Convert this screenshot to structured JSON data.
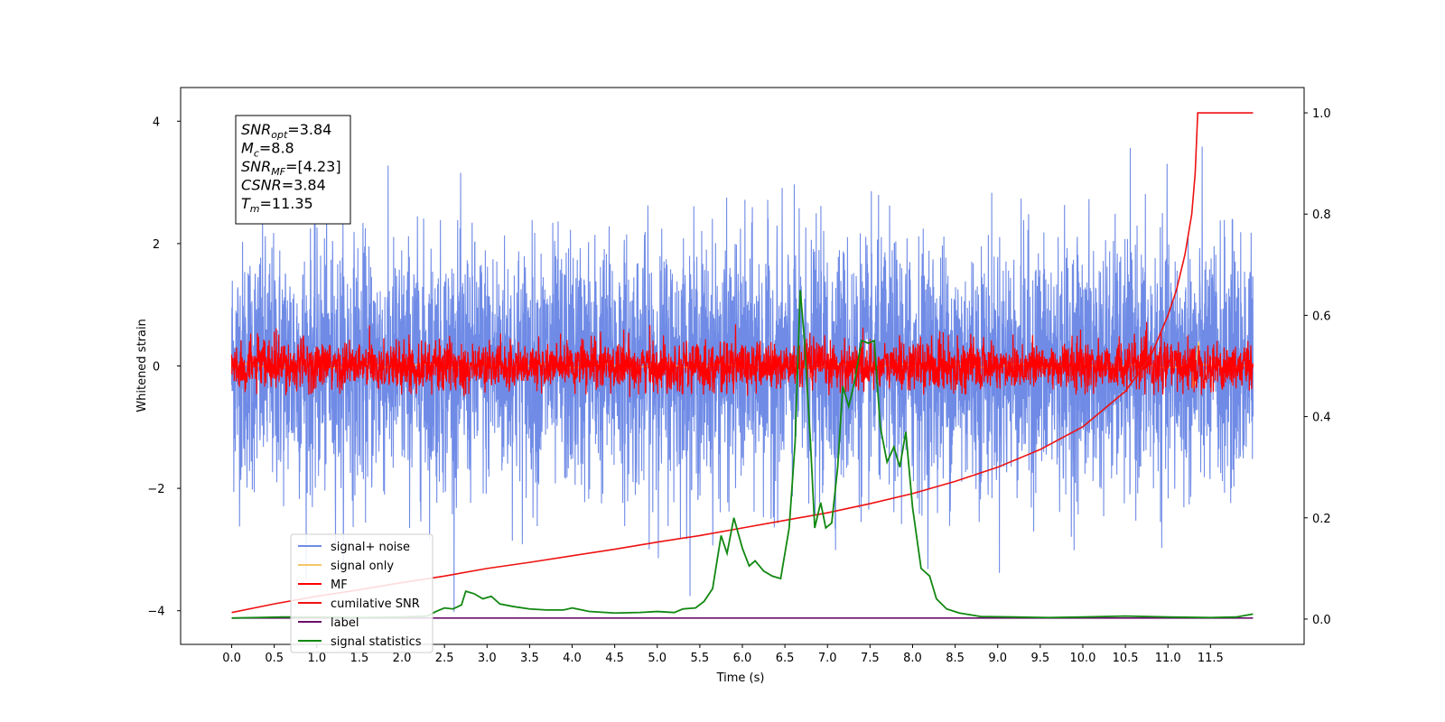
{
  "chart_data": {
    "type": "line",
    "xlabel": "Time (s)",
    "ylabel": "Whitened strain",
    "xlim": [
      -0.6,
      12.6
    ],
    "ylim": [
      -4.55,
      4.55
    ],
    "y2lim": [
      -0.05,
      1.05
    ],
    "x_ticks": [
      "0.0",
      "0.5",
      "1.0",
      "1.5",
      "2.0",
      "2.5",
      "3.0",
      "3.5",
      "4.0",
      "4.5",
      "5.0",
      "5.5",
      "6.0",
      "6.5",
      "7.0",
      "7.5",
      "8.0",
      "8.5",
      "9.0",
      "9.5",
      "10.0",
      "10.5",
      "11.0",
      "11.5"
    ],
    "y_ticks": [
      "−4",
      "−2",
      "0",
      "2",
      "4"
    ],
    "y2_ticks": [
      "0.0",
      "0.2",
      "0.4",
      "0.6",
      "0.8",
      "1.0"
    ],
    "legend_placement": "lower-left",
    "grid": false,
    "colors": {
      "signal_noise": "#6f8be6",
      "signal_only": "#f5c66a",
      "mf": "#ff0000",
      "cumulative": "#ee1111",
      "label": "#6a0f6a",
      "statistics": "#118811"
    },
    "series": [
      {
        "key": "signal_noise",
        "name": "signal+ noise",
        "axis": "left",
        "note_amplitude": 1.0,
        "t_range": [
          0.0,
          12.0
        ]
      },
      {
        "key": "signal_only",
        "name": "signal only",
        "axis": "left",
        "t_range": [
          0.0,
          12.0
        ]
      },
      {
        "key": "mf",
        "name": "MF",
        "axis": "left",
        "t_range": [
          0.0,
          12.0
        ]
      },
      {
        "key": "cumulative",
        "name": "cumilative SNR",
        "axis": "right",
        "points": [
          [
            0.0,
            0.013
          ],
          [
            0.5,
            0.03
          ],
          [
            1.0,
            0.045
          ],
          [
            1.5,
            0.058
          ],
          [
            2.0,
            0.072
          ],
          [
            2.5,
            0.085
          ],
          [
            3.0,
            0.1
          ],
          [
            3.5,
            0.112
          ],
          [
            4.0,
            0.125
          ],
          [
            4.5,
            0.138
          ],
          [
            5.0,
            0.152
          ],
          [
            5.5,
            0.165
          ],
          [
            6.0,
            0.18
          ],
          [
            6.5,
            0.195
          ],
          [
            7.0,
            0.21
          ],
          [
            7.5,
            0.228
          ],
          [
            8.0,
            0.248
          ],
          [
            8.5,
            0.272
          ],
          [
            9.0,
            0.3
          ],
          [
            9.5,
            0.335
          ],
          [
            10.0,
            0.38
          ],
          [
            10.5,
            0.45
          ],
          [
            10.8,
            0.52
          ],
          [
            11.0,
            0.6
          ],
          [
            11.1,
            0.65
          ],
          [
            11.2,
            0.72
          ],
          [
            11.28,
            0.8
          ],
          [
            11.32,
            0.88
          ],
          [
            11.35,
            1.0
          ],
          [
            12.0,
            1.0
          ]
        ]
      },
      {
        "key": "label",
        "name": "label",
        "axis": "right",
        "points": [
          [
            0.0,
            0.002
          ],
          [
            12.0,
            0.002
          ]
        ]
      },
      {
        "key": "statistics",
        "name": "signal statistics",
        "axis": "right",
        "points": [
          [
            0.0,
            0.002
          ],
          [
            0.3,
            0.003
          ],
          [
            0.6,
            0.004
          ],
          [
            1.0,
            0.004
          ],
          [
            1.5,
            0.003
          ],
          [
            2.0,
            0.004
          ],
          [
            2.3,
            0.006
          ],
          [
            2.4,
            0.015
          ],
          [
            2.5,
            0.022
          ],
          [
            2.6,
            0.02
          ],
          [
            2.7,
            0.028
          ],
          [
            2.75,
            0.055
          ],
          [
            2.85,
            0.05
          ],
          [
            2.95,
            0.04
          ],
          [
            3.05,
            0.045
          ],
          [
            3.15,
            0.03
          ],
          [
            3.3,
            0.025
          ],
          [
            3.5,
            0.02
          ],
          [
            3.7,
            0.018
          ],
          [
            3.9,
            0.018
          ],
          [
            4.0,
            0.022
          ],
          [
            4.2,
            0.015
          ],
          [
            4.5,
            0.012
          ],
          [
            4.8,
            0.013
          ],
          [
            5.0,
            0.015
          ],
          [
            5.2,
            0.013
          ],
          [
            5.3,
            0.02
          ],
          [
            5.45,
            0.022
          ],
          [
            5.55,
            0.035
          ],
          [
            5.65,
            0.06
          ],
          [
            5.75,
            0.165
          ],
          [
            5.82,
            0.13
          ],
          [
            5.9,
            0.2
          ],
          [
            6.0,
            0.14
          ],
          [
            6.08,
            0.105
          ],
          [
            6.15,
            0.115
          ],
          [
            6.25,
            0.095
          ],
          [
            6.35,
            0.085
          ],
          [
            6.45,
            0.08
          ],
          [
            6.55,
            0.18
          ],
          [
            6.62,
            0.35
          ],
          [
            6.68,
            0.65
          ],
          [
            6.73,
            0.55
          ],
          [
            6.8,
            0.35
          ],
          [
            6.85,
            0.18
          ],
          [
            6.92,
            0.23
          ],
          [
            6.98,
            0.18
          ],
          [
            7.05,
            0.19
          ],
          [
            7.12,
            0.3
          ],
          [
            7.18,
            0.46
          ],
          [
            7.25,
            0.42
          ],
          [
            7.32,
            0.47
          ],
          [
            7.4,
            0.55
          ],
          [
            7.48,
            0.545
          ],
          [
            7.55,
            0.55
          ],
          [
            7.62,
            0.38
          ],
          [
            7.7,
            0.31
          ],
          [
            7.78,
            0.34
          ],
          [
            7.85,
            0.3
          ],
          [
            7.92,
            0.37
          ],
          [
            8.0,
            0.22
          ],
          [
            8.1,
            0.1
          ],
          [
            8.2,
            0.085
          ],
          [
            8.28,
            0.04
          ],
          [
            8.4,
            0.02
          ],
          [
            8.55,
            0.012
          ],
          [
            8.8,
            0.005
          ],
          [
            9.2,
            0.004
          ],
          [
            9.6,
            0.003
          ],
          [
            10.0,
            0.004
          ],
          [
            10.5,
            0.006
          ],
          [
            11.0,
            0.004
          ],
          [
            11.5,
            0.003
          ],
          [
            11.8,
            0.004
          ],
          [
            12.0,
            0.01
          ]
        ]
      }
    ],
    "annotation": {
      "lines": [
        {
          "base": "SNR",
          "sub": "opt",
          "rest": "=3.84"
        },
        {
          "base": "M",
          "sub": "c",
          "rest": "=8.8"
        },
        {
          "base": "SNR",
          "sub": "MF",
          "rest": "=[4.23]"
        },
        {
          "base": "CSNR",
          "sub": "",
          "rest": "=3.84"
        },
        {
          "base": "T",
          "sub": "m",
          "rest": "=11.35"
        }
      ]
    }
  }
}
